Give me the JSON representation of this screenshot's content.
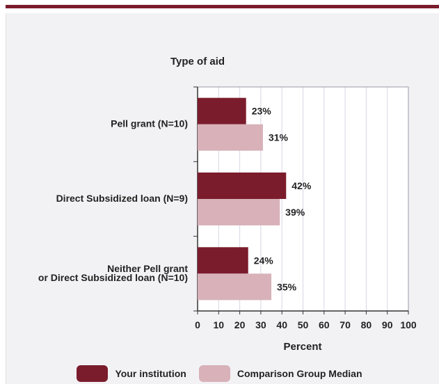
{
  "chart_data": {
    "type": "bar",
    "orientation": "horizontal",
    "title": "Type of aid",
    "xlabel": "Percent",
    "ylabel": "",
    "xlim": [
      0,
      100
    ],
    "xticks": [
      "0",
      "10",
      "20",
      "30",
      "40",
      "50",
      "60",
      "70",
      "80",
      "90",
      "100"
    ],
    "categories": [
      [
        "Pell grant  (N=10)"
      ],
      [
        "Direct Subsidized loan (N=9)"
      ],
      [
        "Neither Pell grant",
        "or Direct Subsidized loan (N=10)"
      ]
    ],
    "series": [
      {
        "name": "Your institution",
        "values": [
          23,
          42,
          24
        ],
        "labels": [
          "23%",
          "42%",
          "24%"
        ],
        "color": "#7b1c2c"
      },
      {
        "name": "Comparison Group Median",
        "values": [
          31,
          39,
          35
        ],
        "labels": [
          "31%",
          "39%",
          "35%"
        ],
        "color": "#d8b1b9"
      }
    ],
    "grid": true,
    "legend_position": "bottom"
  }
}
